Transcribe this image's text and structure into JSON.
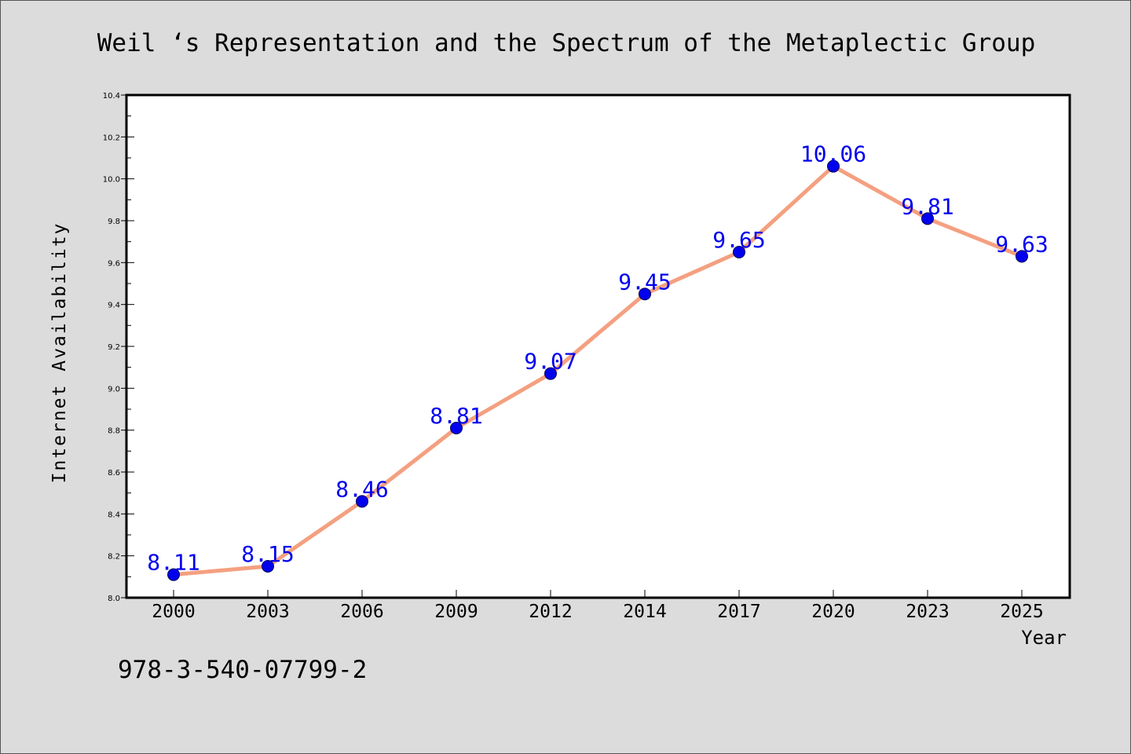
{
  "chart_data": {
    "type": "line",
    "title": "Weil ‘s Representation and the Spectrum of the Metaplectic Group",
    "xlabel": "Year",
    "ylabel": "Internet Availability",
    "categories": [
      "2000",
      "2003",
      "2006",
      "2009",
      "2012",
      "2014",
      "2017",
      "2020",
      "2023",
      "2025"
    ],
    "series": [
      {
        "values": [
          8.11,
          8.15,
          8.46,
          8.81,
          9.07,
          9.45,
          9.65,
          10.06,
          9.81,
          9.63
        ],
        "data_labels": [
          "8.11",
          "8.15",
          "8.46",
          "8.81",
          "9.07",
          "9.45",
          "9.65",
          "10.06",
          "9.81",
          "9.63"
        ],
        "line_color": "#f4a080",
        "marker_color": "#0000ee",
        "label_color": "#0000ee"
      }
    ],
    "ylim": [
      8.0,
      10.4
    ],
    "yticks": [
      "8.0",
      "8.2",
      "8.4",
      "8.6",
      "8.8",
      "9.0",
      "9.2",
      "9.4",
      "9.6",
      "9.8",
      "10.0",
      "10.2",
      "10.4"
    ],
    "grid": false,
    "background_color": "#dcdcdc",
    "plot_background_color": "#ffffff"
  },
  "footer": {
    "isbn": "978-3-540-07799-2"
  }
}
